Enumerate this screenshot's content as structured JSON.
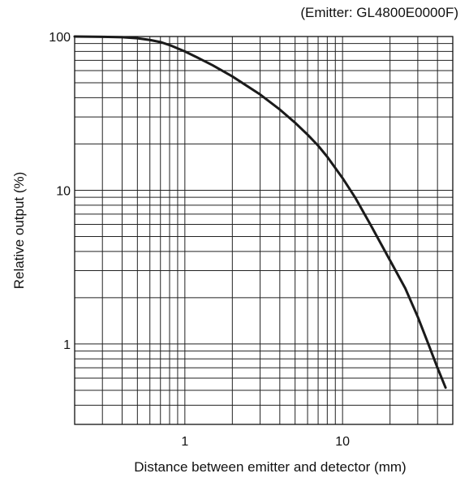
{
  "chart_data": {
    "type": "line",
    "annotation": "(Emitter: GL4800E0000F)",
    "xlabel": "Distance between emitter and detector (mm)",
    "ylabel": "Relative output (%)",
    "x_scale": "log",
    "y_scale": "log",
    "xlim": [
      0.2,
      50
    ],
    "ylim": [
      0.3,
      100
    ],
    "x_tick_labels": [
      {
        "value": 1,
        "label": "1"
      },
      {
        "value": 10,
        "label": "10"
      }
    ],
    "y_tick_labels": [
      {
        "value": 1,
        "label": "1"
      },
      {
        "value": 10,
        "label": "10"
      },
      {
        "value": 100,
        "label": "100"
      }
    ],
    "x_minor_grid": [
      0.2,
      0.3,
      0.4,
      0.5,
      0.6,
      0.7,
      0.8,
      0.9,
      1,
      2,
      3,
      4,
      5,
      6,
      7,
      8,
      9,
      10,
      20,
      30,
      40,
      50
    ],
    "y_minor_grid": [
      0.3,
      0.4,
      0.5,
      0.6,
      0.7,
      0.8,
      0.9,
      1,
      2,
      3,
      4,
      5,
      6,
      7,
      8,
      9,
      10,
      20,
      30,
      40,
      50,
      60,
      70,
      80,
      90,
      100
    ],
    "grid": true,
    "series": [
      {
        "color": "#1a1a1a",
        "x": [
          0.2,
          0.3,
          0.4,
          0.5,
          0.6,
          0.7,
          0.8,
          1.0,
          1.2,
          1.5,
          2,
          3,
          4,
          5,
          6,
          7,
          8,
          10,
          12,
          15,
          20,
          25,
          30,
          35,
          40,
          45
        ],
        "y": [
          100,
          99.5,
          99,
          97.5,
          95,
          92,
          88,
          80,
          73,
          65,
          55,
          42,
          33.5,
          27.5,
          23,
          19.5,
          16.5,
          12,
          9,
          6,
          3.5,
          2.3,
          1.5,
          1.0,
          0.7,
          0.52
        ]
      }
    ]
  }
}
